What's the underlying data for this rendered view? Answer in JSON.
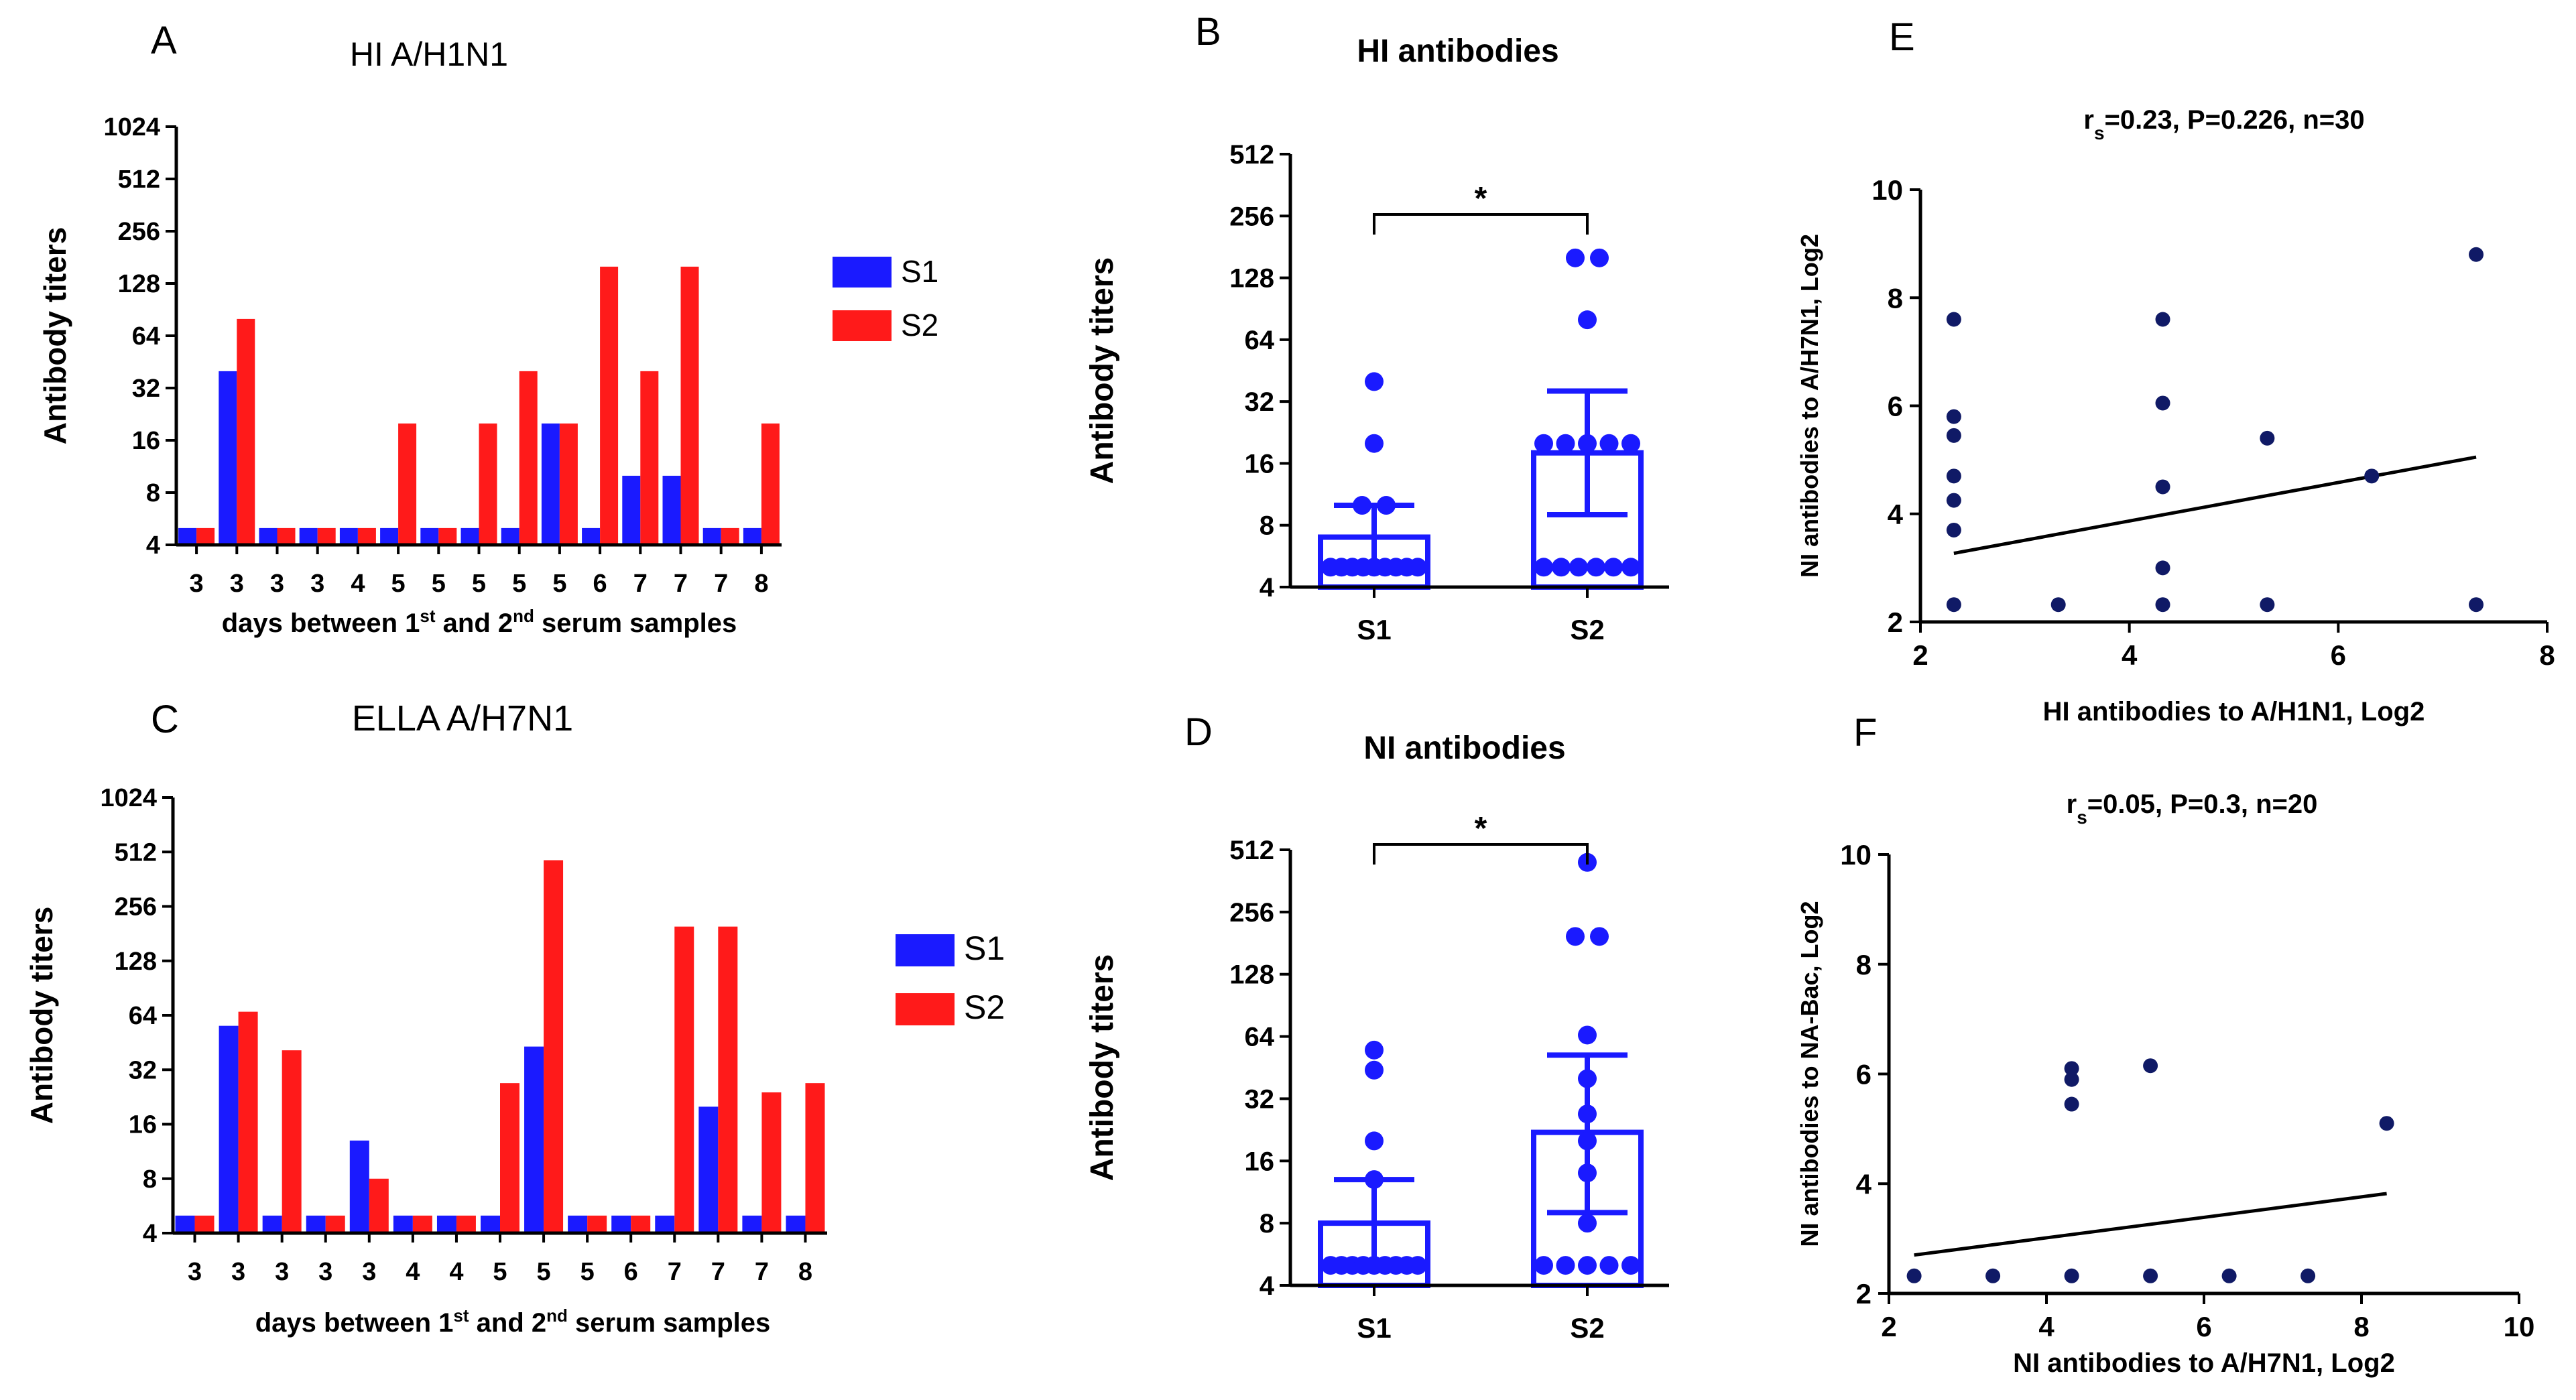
{
  "colors": {
    "s1": "#1a1aff",
    "s2": "#ff1a1a",
    "dot": "#1a1aff",
    "navy": "#101a66",
    "axis": "#000000"
  },
  "chart_data": [
    {
      "panel": "A",
      "type": "bar",
      "title": "HI A/H1N1",
      "ylabel": "Antibody titers",
      "xlabel": {
        "pre": "days between 1",
        "sup1": "st",
        "mid": " and 2",
        "sup2": "nd",
        "post": " serum samples"
      },
      "yticks": [
        "4",
        "8",
        "16",
        "32",
        "64",
        "128",
        "256",
        "512",
        "1024"
      ],
      "ylim": [
        4,
        1024
      ],
      "yscale": "log2",
      "categories": [
        "3",
        "3",
        "3",
        "3",
        "4",
        "5",
        "5",
        "5",
        "5",
        "5",
        "6",
        "7",
        "7",
        "7",
        "8"
      ],
      "series": [
        {
          "name": "S1",
          "values": [
            5,
            40,
            5,
            5,
            5,
            5,
            5,
            5,
            5,
            20,
            5,
            10,
            10,
            5,
            5
          ]
        },
        {
          "name": "S2",
          "values": [
            5,
            80,
            5,
            5,
            5,
            20,
            5,
            20,
            40,
            20,
            160,
            40,
            160,
            5,
            20
          ]
        }
      ],
      "legend": [
        "S1",
        "S2"
      ]
    },
    {
      "panel": "C",
      "type": "bar",
      "title": "ELLA A/H7N1",
      "ylabel": "Antibody titers",
      "xlabel": {
        "pre": "days between 1",
        "sup1": "st",
        "mid": " and 2",
        "sup2": "nd",
        "post": " serum samples"
      },
      "yticks": [
        "4",
        "8",
        "16",
        "32",
        "64",
        "128",
        "256",
        "512",
        "1024"
      ],
      "ylim": [
        4,
        1024
      ],
      "yscale": "log2",
      "categories": [
        "3",
        "3",
        "3",
        "3",
        "3",
        "4",
        "4",
        "5",
        "5",
        "5",
        "6",
        "7",
        "7",
        "7",
        "8"
      ],
      "series": [
        {
          "name": "S1",
          "values": [
            5,
            56,
            5,
            5,
            13,
            5,
            5,
            5,
            43,
            5,
            5,
            5,
            20,
            5,
            5
          ]
        },
        {
          "name": "S2",
          "values": [
            5,
            67,
            41,
            5,
            8,
            5,
            5,
            27,
            461,
            5,
            5,
            198,
            198,
            24,
            27
          ]
        }
      ],
      "legend": [
        "S1",
        "S2"
      ]
    },
    {
      "panel": "B",
      "type": "bar-scatter",
      "title": "HI antibodies",
      "ylabel": "Antibody titers",
      "yticks": [
        "4",
        "8",
        "16",
        "32",
        "64",
        "128",
        "256",
        "512"
      ],
      "ylim": [
        4,
        512
      ],
      "yscale": "log2",
      "categories": [
        "S1",
        "S2"
      ],
      "means": [
        7,
        18
      ],
      "error_upper": [
        10,
        36
      ],
      "error_lower": [
        5,
        9
      ],
      "points": [
        [
          5,
          5,
          5,
          5,
          5,
          5,
          5,
          5,
          5,
          10,
          10,
          20,
          40
        ],
        [
          5,
          5,
          5,
          5,
          5,
          5,
          20,
          20,
          20,
          20,
          20,
          80,
          160,
          160
        ]
      ],
      "significance": "*"
    },
    {
      "panel": "D",
      "type": "bar-scatter",
      "title": "NI antibodies",
      "ylabel": "Antibody titers",
      "yticks": [
        "4",
        "8",
        "16",
        "32",
        "64",
        "128",
        "256",
        "512"
      ],
      "ylim": [
        4,
        512
      ],
      "yscale": "log2",
      "categories": [
        "S1",
        "S2"
      ],
      "means": [
        8,
        22
      ],
      "error_upper": [
        13,
        52
      ],
      "error_lower": [
        5,
        9
      ],
      "points": [
        [
          5,
          5,
          5,
          5,
          5,
          5,
          5,
          5,
          5,
          13,
          20,
          44,
          55
        ],
        [
          5,
          5,
          5,
          5,
          5,
          8,
          14,
          20,
          27,
          40,
          65,
          195,
          195,
          445
        ]
      ],
      "significance": "*"
    },
    {
      "panel": "E",
      "type": "scatter",
      "title": {
        "r": "r",
        "sub": "s",
        "rest": "=0.23, P=0.226, n=30"
      },
      "xlabel": "HI antibodies to A/H1N1, Log2",
      "ylabel": "NI antibodies to A/H7N1, Log2",
      "xlim": [
        2,
        8
      ],
      "ylim": [
        2,
        10
      ],
      "xticks": [
        "2",
        "4",
        "6",
        "8"
      ],
      "yticks": [
        "2",
        "4",
        "6",
        "8",
        "10"
      ],
      "points": [
        [
          2.32,
          2.32
        ],
        [
          2.32,
          3.7
        ],
        [
          2.32,
          4.25
        ],
        [
          2.32,
          4.7
        ],
        [
          2.32,
          5.45
        ],
        [
          2.32,
          5.8
        ],
        [
          2.32,
          7.6
        ],
        [
          3.32,
          2.32
        ],
        [
          4.32,
          2.32
        ],
        [
          4.32,
          3.0
        ],
        [
          4.32,
          4.5
        ],
        [
          4.32,
          6.05
        ],
        [
          4.32,
          7.6
        ],
        [
          5.32,
          2.32
        ],
        [
          5.32,
          5.4
        ],
        [
          6.32,
          4.7
        ],
        [
          7.32,
          2.32
        ],
        [
          7.32,
          8.8
        ]
      ],
      "fit_line": [
        [
          2.32,
          3.27
        ],
        [
          7.32,
          5.05
        ]
      ]
    },
    {
      "panel": "F",
      "type": "scatter",
      "title": {
        "r": "r",
        "sub": "s",
        "rest": "=0.05, P=0.3, n=20"
      },
      "xlabel": "NI antibodies to A/H7N1, Log2",
      "ylabel": "NI antibodies to NA-Bac, Log2",
      "xlim": [
        2,
        10
      ],
      "ylim": [
        2,
        10
      ],
      "xticks": [
        "2",
        "4",
        "6",
        "8",
        "10"
      ],
      "yticks": [
        "2",
        "4",
        "6",
        "8",
        "10"
      ],
      "points": [
        [
          2.32,
          2.32
        ],
        [
          3.32,
          2.32
        ],
        [
          4.32,
          2.32
        ],
        [
          4.32,
          5.45
        ],
        [
          4.32,
          5.9
        ],
        [
          4.32,
          6.1
        ],
        [
          5.32,
          2.32
        ],
        [
          5.32,
          6.15
        ],
        [
          6.32,
          2.32
        ],
        [
          7.32,
          2.32
        ],
        [
          8.32,
          5.1
        ]
      ],
      "fit_line": [
        [
          2.32,
          2.7
        ],
        [
          8.32,
          3.82
        ]
      ]
    }
  ]
}
